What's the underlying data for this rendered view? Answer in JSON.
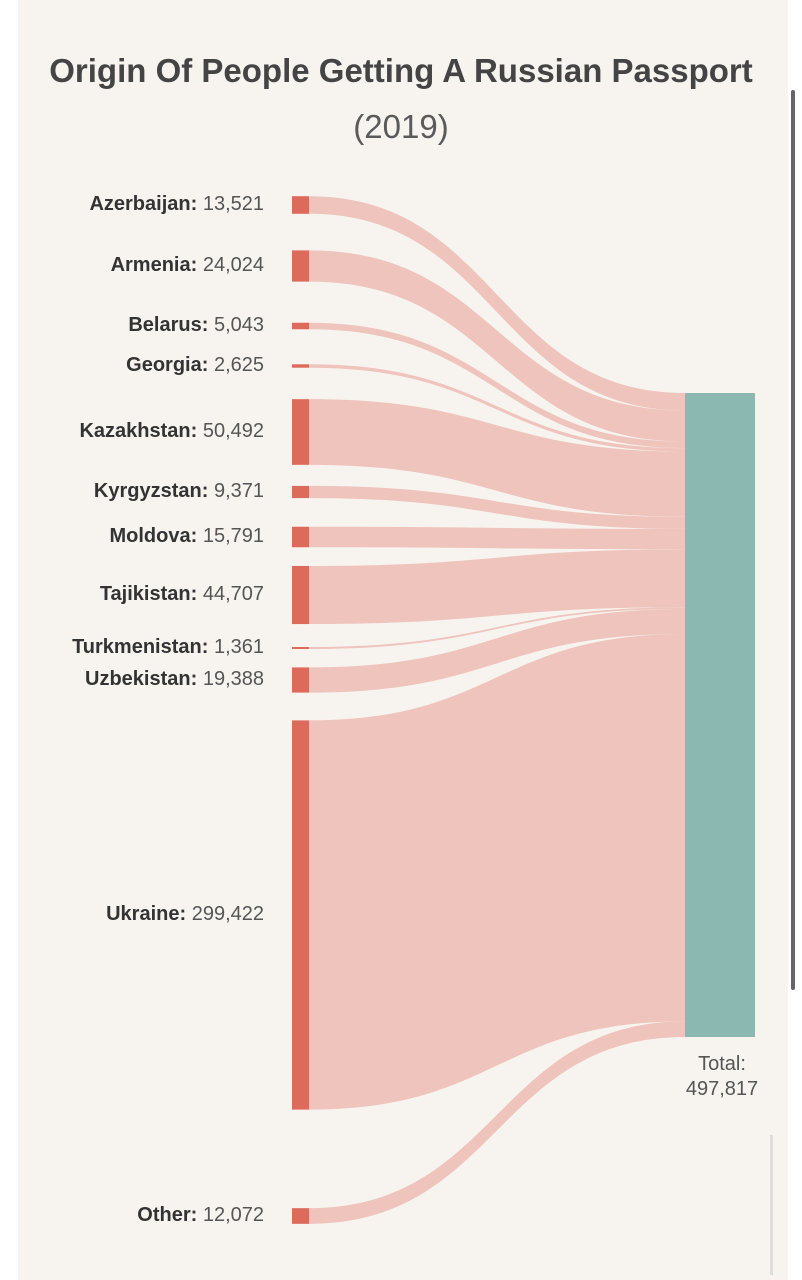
{
  "chart_data": {
    "type": "sankey",
    "title": "Origin Of People Getting A Russian Passport",
    "subtitle": "(2019)",
    "sources": [
      {
        "name": "Azerbaijan",
        "value": 13521,
        "value_label": "13,521"
      },
      {
        "name": "Armenia",
        "value": 24024,
        "value_label": "24,024"
      },
      {
        "name": "Belarus",
        "value": 5043,
        "value_label": "5,043"
      },
      {
        "name": "Georgia",
        "value": 2625,
        "value_label": "2,625"
      },
      {
        "name": "Kazakhstan",
        "value": 50492,
        "value_label": "50,492"
      },
      {
        "name": "Kyrgyzstan",
        "value": 9371,
        "value_label": "9,371"
      },
      {
        "name": "Moldova",
        "value": 15791,
        "value_label": "15,791"
      },
      {
        "name": "Tajikistan",
        "value": 44707,
        "value_label": "44,707"
      },
      {
        "name": "Turkmenistan",
        "value": 1361,
        "value_label": "1,361"
      },
      {
        "name": "Uzbekistan",
        "value": 19388,
        "value_label": "19,388"
      },
      {
        "name": "Ukraine",
        "value": 299422,
        "value_label": "299,422"
      },
      {
        "name": "Other",
        "value": 12072,
        "value_label": "12,072"
      }
    ],
    "target": {
      "label": "Total:",
      "value": 497817,
      "value_label": "497,817"
    }
  },
  "colors": {
    "source_node": "#dd6b5c",
    "link": "#eebfb7",
    "target_node": "#8bb8b1",
    "panel_background": "#f7f4ef"
  }
}
